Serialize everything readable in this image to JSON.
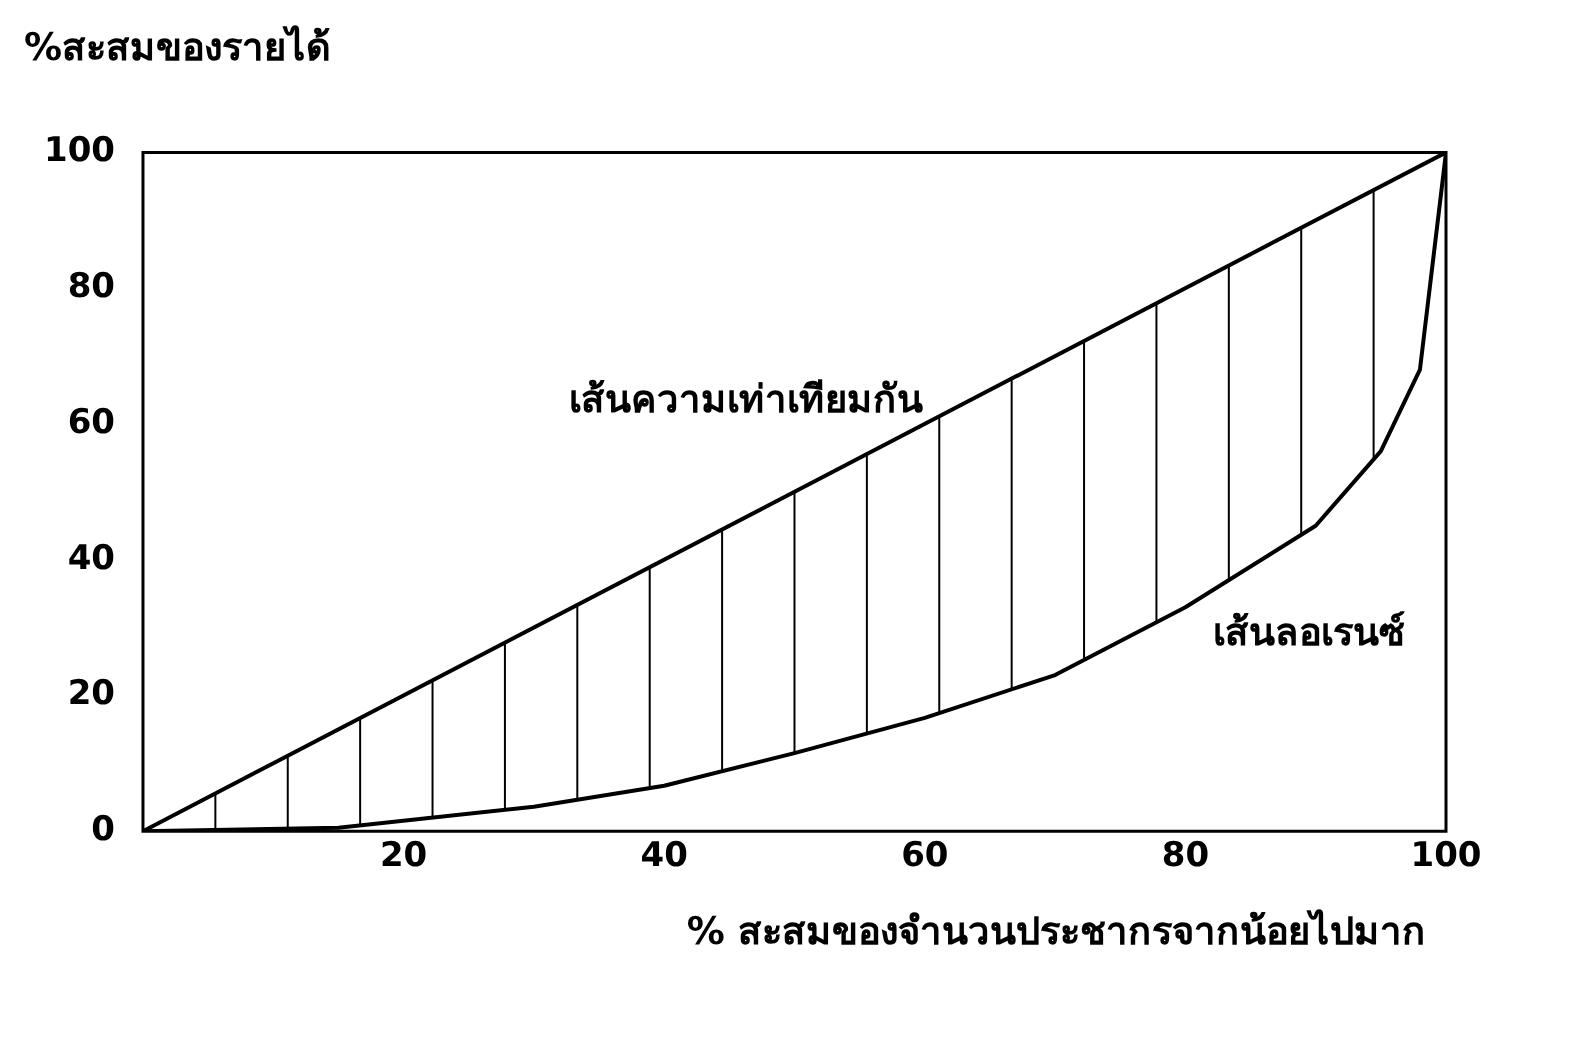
{
  "chart_data": {
    "type": "line",
    "xlabel": "% สะสมของจำนวนประชากรจากน้อยไปมาก",
    "ylabel": "%สะสมของรายได้",
    "series": [
      {
        "name": "เส้นความเท่าเทียมกัน",
        "color": "#000000",
        "x": [
          0,
          100
        ],
        "values": [
          0,
          100
        ]
      },
      {
        "name": "เส้นลอเรนซ์",
        "color": "#000000",
        "x": [
          0,
          15,
          30,
          40,
          50,
          60,
          70,
          80,
          90,
          95,
          98,
          100
        ],
        "values": [
          0,
          0.5,
          3.6,
          6.7,
          11.5,
          16.7,
          23,
          33,
          45,
          56,
          68,
          100
        ]
      }
    ],
    "xlim": [
      0,
      100
    ],
    "xticks": [
      20,
      40,
      60,
      80,
      100
    ],
    "ylim": [
      0,
      100
    ],
    "yticks": [
      0,
      20,
      40,
      60,
      80,
      100
    ],
    "grid": false,
    "legend": false,
    "marker": "none",
    "line_style": "solid"
  }
}
